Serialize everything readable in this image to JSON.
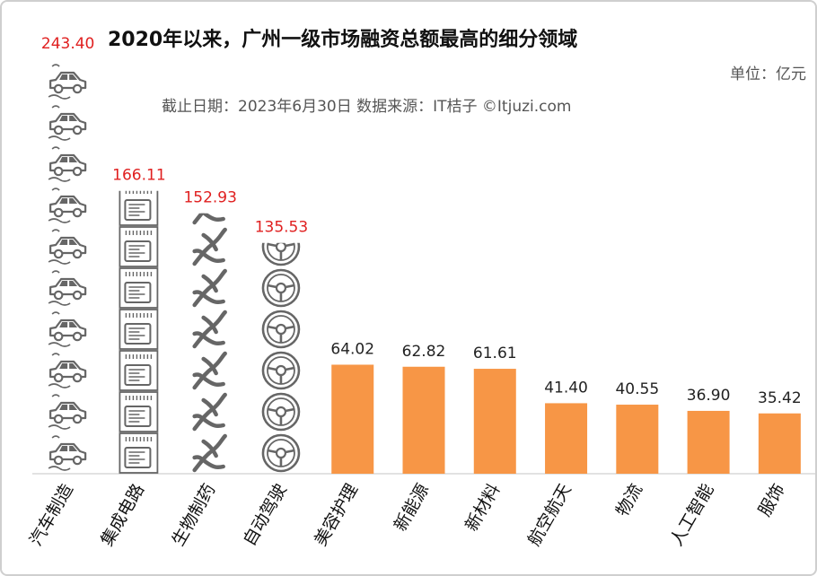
{
  "title": "2020年以来，广州一级市场融资总额最高的细分领域",
  "unit_label": "单位：亿元",
  "source_label": "截止日期：2023年6月30日    数据来源：IT桔子 ©Itjuzi.com",
  "colors": {
    "bar": "#f79646",
    "value_red": "#e02020",
    "value_dark": "#222222",
    "icon": "#666666"
  },
  "chart_data": {
    "type": "bar",
    "categories": [
      "汽车制造",
      "集成电路",
      "生物制药",
      "自动驾驶",
      "美容护理",
      "新能源",
      "新材料",
      "航空航天",
      "物流",
      "人工智能",
      "服饰"
    ],
    "values": [
      243.4,
      166.11,
      152.93,
      135.53,
      64.02,
      62.82,
      61.61,
      41.4,
      40.55,
      36.9,
      35.42
    ],
    "value_labels": [
      "243.40",
      "166.11",
      "152.93",
      "135.53",
      "64.02",
      "62.82",
      "61.61",
      "41.40",
      "40.55",
      "36.90",
      "35.42"
    ],
    "icons": [
      "car-icon",
      "chip-icon",
      "dna-icon",
      "steering-wheel-icon",
      null,
      null,
      null,
      null,
      null,
      null,
      null
    ],
    "ylim": [
      0,
      243.4
    ]
  }
}
